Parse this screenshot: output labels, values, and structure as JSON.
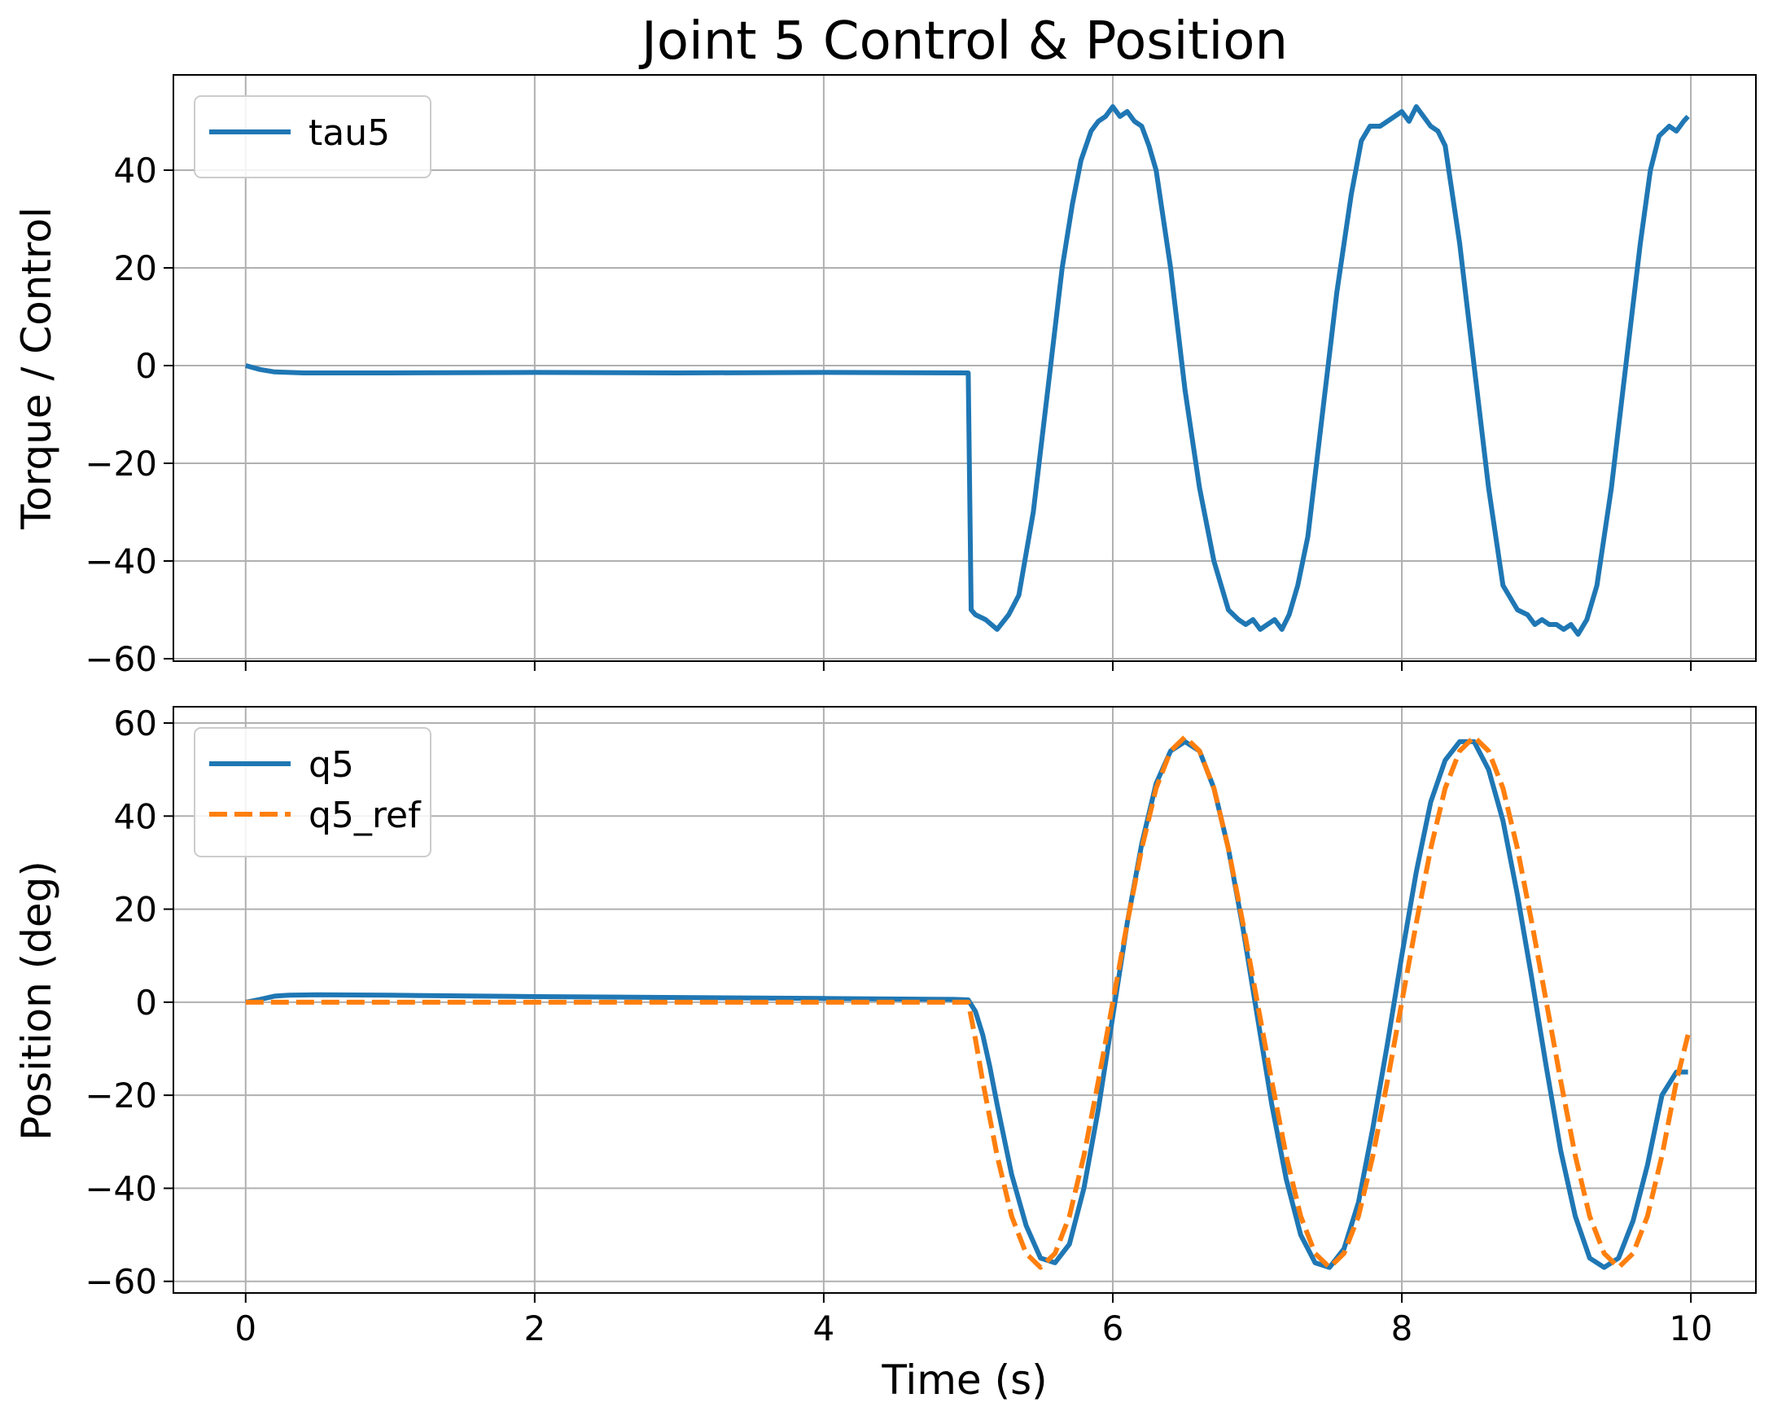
{
  "chart_data": [
    {
      "type": "line",
      "title": "Joint 5 Control & Position",
      "xlabel": "",
      "ylabel": "Torque / Control",
      "xlim": [
        -0.5,
        10.45
      ],
      "ylim": [
        -60.5,
        59.5
      ],
      "xticks": [
        0,
        2,
        4,
        6,
        8,
        10
      ],
      "yticks": [
        -60,
        -40,
        -20,
        0,
        20,
        40
      ],
      "yticklabels": [
        "−60",
        "−40",
        "−20",
        "0",
        "20",
        "40"
      ],
      "show_xticklabels": false,
      "grid": true,
      "legend_position": "top-left",
      "series": [
        {
          "name": "tau5",
          "color": "#1f77b4",
          "style": "solid",
          "x": [
            0,
            0.1,
            0.2,
            0.4,
            1,
            2,
            3,
            4,
            4.95,
            5.0,
            5.02,
            5.05,
            5.12,
            5.2,
            5.28,
            5.35,
            5.45,
            5.55,
            5.65,
            5.72,
            5.78,
            5.85,
            5.9,
            5.95,
            6.0,
            6.05,
            6.1,
            6.15,
            6.2,
            6.25,
            6.3,
            6.4,
            6.5,
            6.6,
            6.7,
            6.8,
            6.87,
            6.92,
            6.97,
            7.02,
            7.07,
            7.12,
            7.17,
            7.22,
            7.28,
            7.35,
            7.45,
            7.55,
            7.65,
            7.72,
            7.78,
            7.85,
            7.9,
            7.95,
            8.0,
            8.05,
            8.1,
            8.15,
            8.2,
            8.25,
            8.3,
            8.4,
            8.5,
            8.6,
            8.7,
            8.8,
            8.87,
            8.92,
            8.97,
            9.02,
            9.07,
            9.12,
            9.17,
            9.22,
            9.28,
            9.35,
            9.45,
            9.55,
            9.65,
            9.72,
            9.78,
            9.85,
            9.9,
            9.95,
            9.98
          ],
          "y": [
            0,
            -0.8,
            -1.3,
            -1.5,
            -1.5,
            -1.4,
            -1.5,
            -1.4,
            -1.5,
            -1.5,
            -50,
            -51,
            -52,
            -54,
            -51,
            -47,
            -30,
            -5,
            20,
            33,
            42,
            48,
            50,
            51,
            53,
            51,
            52,
            50,
            49,
            45,
            40,
            20,
            -5,
            -25,
            -40,
            -50,
            -52,
            -53,
            -52,
            -54,
            -53,
            -52,
            -54,
            -51,
            -45,
            -35,
            -10,
            15,
            35,
            46,
            49,
            49,
            50,
            51,
            52,
            50,
            53,
            51,
            49,
            48,
            45,
            25,
            0,
            -25,
            -45,
            -50,
            -51,
            -53,
            -52,
            -53,
            -53,
            -54,
            -53,
            -55,
            -52,
            -45,
            -25,
            0,
            25,
            40,
            47,
            49,
            48,
            50,
            51
          ]
        }
      ]
    },
    {
      "type": "line",
      "title": "",
      "xlabel": "Time (s)",
      "ylabel": "Position (deg)",
      "xlim": [
        -0.5,
        10.45
      ],
      "ylim": [
        -62.5,
        63.5
      ],
      "xticks": [
        0,
        2,
        4,
        6,
        8,
        10
      ],
      "xticklabels": [
        "0",
        "2",
        "4",
        "6",
        "8",
        "10"
      ],
      "yticks": [
        -60,
        -40,
        -20,
        0,
        20,
        40,
        60
      ],
      "yticklabels": [
        "−60",
        "−40",
        "−20",
        "0",
        "20",
        "40",
        "60"
      ],
      "show_xticklabels": true,
      "grid": true,
      "legend_position": "top-left",
      "series": [
        {
          "name": "q5",
          "color": "#1f77b4",
          "style": "solid",
          "x": [
            0,
            0.1,
            0.2,
            0.3,
            0.5,
            1,
            2,
            3,
            4,
            4.9,
            5.0,
            5.05,
            5.1,
            5.15,
            5.2,
            5.3,
            5.4,
            5.5,
            5.6,
            5.7,
            5.8,
            5.9,
            6.0,
            6.1,
            6.2,
            6.3,
            6.4,
            6.5,
            6.6,
            6.7,
            6.8,
            6.9,
            7.0,
            7.1,
            7.2,
            7.3,
            7.4,
            7.5,
            7.6,
            7.7,
            7.8,
            7.9,
            8.0,
            8.1,
            8.2,
            8.3,
            8.4,
            8.5,
            8.6,
            8.7,
            8.8,
            8.9,
            9.0,
            9.1,
            9.2,
            9.3,
            9.4,
            9.5,
            9.6,
            9.7,
            9.8,
            9.9,
            9.98
          ],
          "y": [
            0,
            0.6,
            1.3,
            1.5,
            1.6,
            1.5,
            1.2,
            1.0,
            0.8,
            0.6,
            0.5,
            -2,
            -7,
            -14,
            -22,
            -37,
            -48,
            -55,
            -56,
            -52,
            -40,
            -23,
            -3,
            17,
            34,
            47,
            54,
            56,
            54,
            46,
            33,
            16,
            -3,
            -22,
            -38,
            -50,
            -56,
            -57,
            -53,
            -43,
            -27,
            -9,
            10,
            28,
            43,
            52,
            56,
            56,
            50,
            39,
            23,
            5,
            -14,
            -32,
            -46,
            -55,
            -57,
            -55,
            -47,
            -35,
            -20,
            -15,
            -15
          ]
        },
        {
          "name": "q5_ref",
          "color": "#ff7f0e",
          "style": "dashed",
          "x": [
            0,
            1,
            2,
            3,
            4,
            4.9,
            5.0,
            5.05,
            5.1,
            5.2,
            5.3,
            5.4,
            5.5,
            5.6,
            5.7,
            5.8,
            5.9,
            6.0,
            6.1,
            6.2,
            6.3,
            6.4,
            6.5,
            6.6,
            6.7,
            6.8,
            6.9,
            7.0,
            7.1,
            7.2,
            7.3,
            7.4,
            7.5,
            7.6,
            7.7,
            7.8,
            7.9,
            8.0,
            8.1,
            8.2,
            8.3,
            8.4,
            8.5,
            8.6,
            8.7,
            8.8,
            8.9,
            9.0,
            9.1,
            9.2,
            9.3,
            9.4,
            9.5,
            9.6,
            9.7,
            9.8,
            9.9,
            9.98
          ],
          "y": [
            0,
            0,
            0,
            0,
            0,
            0,
            0,
            -8,
            -17,
            -33,
            -46,
            -54,
            -57,
            -54,
            -46,
            -33,
            -17,
            0,
            17,
            33,
            46,
            54,
            57,
            54,
            46,
            33,
            17,
            0,
            -17,
            -33,
            -46,
            -54,
            -57,
            -54,
            -46,
            -33,
            -17,
            0,
            17,
            33,
            46,
            54,
            57,
            54,
            46,
            33,
            17,
            0,
            -17,
            -33,
            -46,
            -54,
            -57,
            -54,
            -46,
            -33,
            -17,
            -7
          ]
        }
      ]
    }
  ]
}
